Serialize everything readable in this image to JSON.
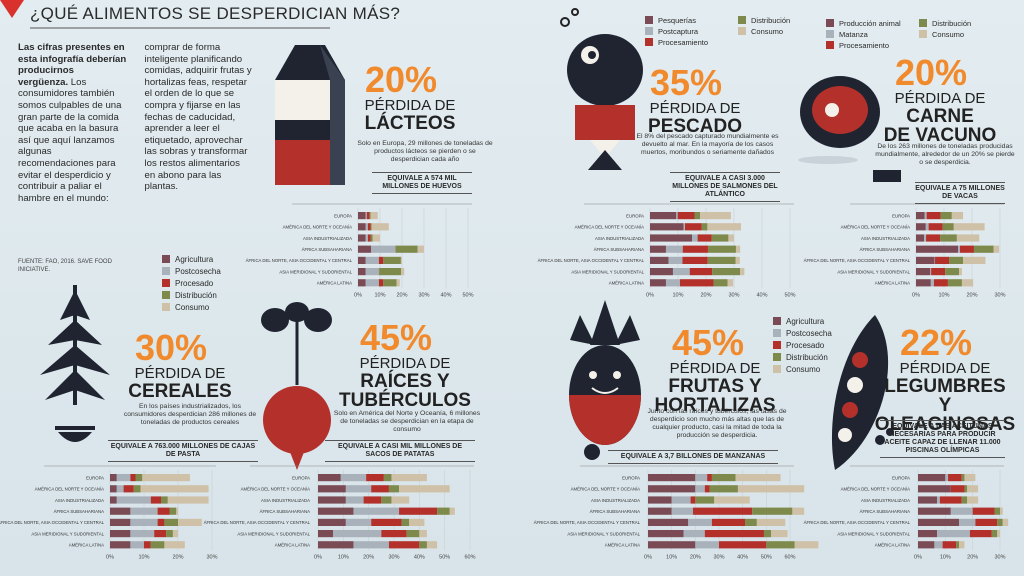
{
  "title": "¿QUÉ ALIMENTOS SE DESPERDICIAN MÁS?",
  "intro": {
    "bold": "Las cifras presentes en esta infografía deberían producirnos vergüenza.",
    "text": "Los consumidores también somos culpables de una gran parte de la comida que acaba en la basura así que aquí lanzamos algunas recomendaciones para evitar el desperdicio y contribuir a paliar el hambre en el mundo: comprar de forma inteligente planificando comidas, adquirir frutas y hortalizas feas, respetar el orden de lo que se compra y fijarse en las fechas de caducidad, aprender a leer el etiquetado, aprovechar las sobras y transformar los restos alimentarios en abono para las plantas.",
    "source": "FUENTE: FAO, 2016. SAVE FOOD INICIATIVE."
  },
  "colors": [
    "#7b4b55",
    "#a9b2ba",
    "#b3302b",
    "#7e8a4b",
    "#cfc1a7"
  ],
  "legends": [
    [
      "Agricultura",
      "Postcosecha",
      "Procesado",
      "Distribución",
      "Consumo"
    ],
    [
      "Pesquerías",
      "Postcaptura",
      "Procesamiento",
      "Distribución",
      "Consumo"
    ],
    [
      "Producción animal",
      "Matanza",
      "Procesamiento",
      "Distribución",
      "Consumo"
    ],
    [
      "Agricultura",
      "Postcosecha",
      "Procesado",
      "Distribución",
      "Consumo"
    ]
  ],
  "regions": [
    "EUROPA",
    "AMÉRICA DEL NORTE Y OCEANÍA",
    "ASIA INDUSTRIALIZADA",
    "ÁFRICA SUBSAHARIANA",
    "ÁFRICA DEL NORTE, ASIA OCCIDENTAL Y CENTRAL",
    "ASIA MERIDIONAL Y SUDORIENTAL",
    "AMÉRICA LATINA"
  ],
  "panels": [
    {
      "percent": "20%",
      "heading": [
        "PÉRDIDA DE",
        "LÁCTEOS"
      ],
      "text": "Solo en Europa, 29 millones de toneladas de productos lácteos se pierden o se desperdician cada año",
      "equivalence": "EQUIVALE A 574 MIL MILLONES DE HUEVOS",
      "chart": {
        "xlim": [
          0,
          50
        ],
        "xticks": [
          {
            "value": 0,
            "label": "0%"
          },
          {
            "value": 10,
            "label": "10%"
          },
          {
            "value": 20,
            "label": "20%"
          },
          {
            "value": 30,
            "label": "30%"
          },
          {
            "value": 40,
            "label": "40%"
          },
          {
            "value": 50,
            "label": "50%"
          }
        ],
        "values": [
          [
            3.5,
            3.5,
            3.5,
            6,
            3.5,
            3.5,
            3.5
          ],
          [
            0.5,
            1,
            1,
            11,
            6,
            6,
            6
          ],
          [
            1.2,
            1.2,
            1.2,
            0.1,
            2,
            0.1,
            2
          ],
          [
            0.5,
            0.5,
            1,
            10,
            8,
            10,
            6
          ],
          [
            3.3,
            7.8,
            3.3,
            2.9,
            0.5,
            1.4,
            1.5
          ]
        ]
      }
    },
    {
      "percent": "35%",
      "heading": [
        "PÉRDIDA DE",
        "PESCADO"
      ],
      "text": "El 8% del pescado capturado mundialmente es devuelto al mar. En la mayoría de los casos muertos, moribundos o seriamente dañados",
      "equivalence": "EQUIVALE A CASI 3.000 MILLONES DE SALMONES DEL ATLÁNTICO",
      "chart": {
        "xlim": [
          0,
          50
        ],
        "xticks": [
          {
            "value": 0,
            "label": "0%"
          },
          {
            "value": 10,
            "label": "10%"
          },
          {
            "value": 20,
            "label": "20%"
          },
          {
            "value": 30,
            "label": "30%"
          },
          {
            "value": 40,
            "label": "40%"
          },
          {
            "value": 50,
            "label": "50%"
          }
        ],
        "values": [
          [
            9.4,
            12,
            15,
            5.7,
            6.6,
            8.2,
            5.7
          ],
          [
            0.5,
            0.5,
            2,
            6,
            5,
            6,
            5
          ],
          [
            6,
            6,
            5,
            9,
            9,
            8,
            12
          ],
          [
            2,
            2,
            6,
            10,
            10,
            10,
            5
          ],
          [
            11,
            12,
            2,
            1.5,
            1.5,
            1.5,
            2
          ]
        ]
      }
    },
    {
      "percent": "20%",
      "heading": [
        "PÉRDIDA DE",
        "CARNE",
        "DE VACUNO"
      ],
      "text": "De los 263 millones de toneladas producidas mundialmente, alrededor de un 20% se pierde o se desperdicia.",
      "equivalence": "EQUIVALE A 75 MILLONES DE VACAS",
      "chart": {
        "xlim": [
          0,
          30
        ],
        "xticks": [
          {
            "value": 0,
            "label": "0%"
          },
          {
            "value": 10,
            "label": "10%"
          },
          {
            "value": 20,
            "label": "20%"
          },
          {
            "value": 30,
            "label": "30%"
          }
        ],
        "values": [
          [
            3.1,
            3.5,
            2.9,
            15,
            6.6,
            5.1,
            5.3
          ],
          [
            0.7,
            1,
            0.7,
            0.7,
            0.2,
            0.3,
            1.1
          ],
          [
            5,
            5,
            5,
            5,
            5,
            5,
            5
          ],
          [
            4,
            4,
            6,
            7,
            5,
            5,
            5
          ],
          [
            4,
            11,
            8,
            2,
            8,
            1,
            4
          ]
        ]
      }
    },
    {
      "percent": "30%",
      "heading": [
        "PÉRDIDA DE",
        "CEREALES"
      ],
      "text": "En los países industrializados, los consumidores desperdician 286 millones de toneladas de productos cereales",
      "equivalence": "EQUIVALE A 763.000 MILLONES DE CAJAS DE PASTA",
      "chart": {
        "xlim": [
          0,
          30
        ],
        "xticks": [
          {
            "value": 0,
            "label": "0%"
          },
          {
            "value": 10,
            "label": "10%"
          },
          {
            "value": 20,
            "label": "20%"
          },
          {
            "value": 30,
            "label": "30%"
          }
        ],
        "values": [
          [
            2,
            2,
            2,
            6,
            6,
            6,
            6
          ],
          [
            4,
            2,
            10,
            8,
            8,
            7,
            4
          ],
          [
            1.5,
            3,
            3,
            3.5,
            2,
            3.5,
            2
          ],
          [
            2,
            2,
            2,
            2,
            4,
            2,
            4
          ],
          [
            14,
            20,
            12,
            0.5,
            7,
            1.5,
            6
          ]
        ]
      }
    },
    {
      "percent": "45%",
      "heading": [
        "PÉRDIDA DE",
        "RAÍCES Y",
        "TUBÉRCULOS"
      ],
      "text": "Solo en América del Norte y Oceanía, 6 millones de toneladas se desperdician en la etapa de consumo",
      "equivalence": "EQUIVALE A CASI MIL MILLONES DE SACOS DE PATATAS",
      "chart": {
        "xlim": [
          0,
          60
        ],
        "xticks": [
          {
            "value": 0,
            "label": "0%"
          },
          {
            "value": 10,
            "label": "10%"
          },
          {
            "value": 20,
            "label": "20%"
          },
          {
            "value": 30,
            "label": "30%"
          },
          {
            "value": 40,
            "label": "40%"
          },
          {
            "value": 50,
            "label": "50%"
          },
          {
            "value": 60,
            "label": "60%"
          }
        ],
        "values": [
          [
            9,
            11,
            11,
            14,
            11,
            6,
            14
          ],
          [
            10,
            10,
            7,
            18,
            10,
            19,
            14
          ],
          [
            7,
            7,
            7,
            15,
            12,
            10,
            12
          ],
          [
            3,
            4,
            4,
            5,
            3,
            5,
            3
          ],
          [
            14,
            20,
            7,
            2,
            6,
            3,
            4
          ]
        ]
      }
    },
    {
      "percent": "45%",
      "heading": [
        "PÉRDIDA DE",
        "FRUTAS Y",
        "HORTALIZAS"
      ],
      "text": "Junto con las raíces y tubérculos, las tasas de desperdicio son mucho más altas que las de cualquier producto, casi la mitad de toda la producción se desperdicia.",
      "equivalence": "EQUIVALE A 3,7 BILLONES DE MANZANAS",
      "chart": {
        "xlim": [
          0,
          60
        ],
        "xticks": [
          {
            "value": 0,
            "label": "0%"
          },
          {
            "value": 10,
            "label": "10%"
          },
          {
            "value": 20,
            "label": "20%"
          },
          {
            "value": 30,
            "label": "30%"
          },
          {
            "value": 40,
            "label": "40%"
          },
          {
            "value": 50,
            "label": "50%"
          },
          {
            "value": 60,
            "label": "60%"
          }
        ],
        "values": [
          [
            20,
            20,
            10,
            10,
            17,
            15,
            20
          ],
          [
            5,
            4,
            8,
            9,
            10,
            9,
            10
          ],
          [
            2,
            2,
            2,
            25,
            14,
            25,
            20
          ],
          [
            10,
            12,
            8,
            17,
            5,
            3,
            12
          ],
          [
            19,
            28,
            15,
            5,
            12,
            7,
            10
          ]
        ]
      }
    },
    {
      "percent": "22%",
      "heading": [
        "PÉRDIDA DE",
        "LEGUMBRES",
        "Y OLEAGINOSAS"
      ],
      "equivalence": "EQUIVALE A LAS ACEITUNAS NECESARIAS PARA PRODUCIR ACEITE CAPAZ DE LLENAR 11.000 PISCINAS OLÍMPICAS",
      "chart": {
        "xlim": [
          0,
          30
        ],
        "xticks": [
          {
            "value": 0,
            "label": "0%"
          },
          {
            "value": 10,
            "label": "10%"
          },
          {
            "value": 20,
            "label": "20%"
          },
          {
            "value": 30,
            "label": "30%"
          }
        ],
        "values": [
          [
            10,
            12,
            7,
            12,
            15,
            7,
            6
          ],
          [
            1,
            0,
            1,
            8,
            6,
            12,
            3
          ],
          [
            5,
            5,
            8,
            8,
            8,
            8,
            5
          ],
          [
            1,
            1,
            2,
            2,
            2,
            2,
            1
          ],
          [
            4,
            4,
            4,
            1,
            2,
            1,
            2
          ]
        ]
      }
    }
  ]
}
